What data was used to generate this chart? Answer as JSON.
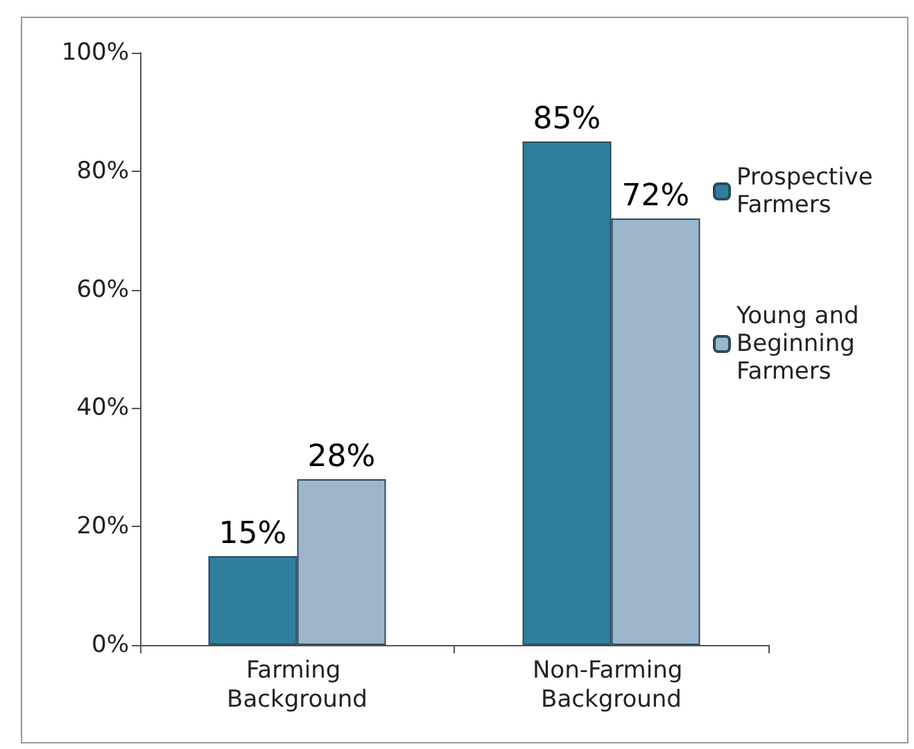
{
  "chart_data": {
    "type": "bar",
    "categories": [
      "Farming Background",
      "Non-Farming Background"
    ],
    "series": [
      {
        "name": "Prospective Farmers",
        "color": "#2e7f9e",
        "values": [
          15,
          85
        ],
        "value_labels": [
          "15%",
          "85%"
        ]
      },
      {
        "name": "Young and Beginning Farmers",
        "color": "#9db6c9",
        "values": [
          28,
          72
        ],
        "value_labels": [
          "28%",
          "72%"
        ]
      }
    ],
    "ylim": [
      0,
      100
    ],
    "yticks": [
      {
        "value": 0,
        "label": "0%"
      },
      {
        "value": 20,
        "label": "20%"
      },
      {
        "value": 40,
        "label": "40%"
      },
      {
        "value": 60,
        "label": "60%"
      },
      {
        "value": 80,
        "label": "80%"
      },
      {
        "value": 100,
        "label": "100%"
      }
    ],
    "grid": false,
    "legend": "right"
  }
}
